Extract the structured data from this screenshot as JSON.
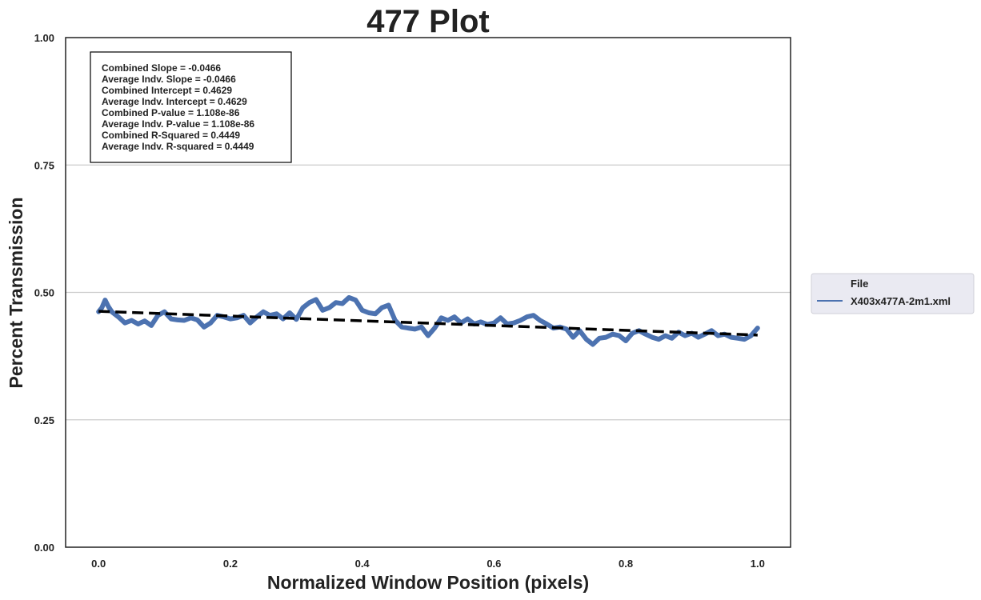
{
  "chart_data": {
    "type": "line",
    "title": "477 Plot",
    "xlabel": "Normalized Window Position (pixels)",
    "ylabel": "Percent Transmission",
    "xlim": [
      -0.05,
      1.05
    ],
    "ylim": [
      0.0,
      1.0
    ],
    "xticks": [
      0.0,
      0.2,
      0.4,
      0.6,
      0.8,
      1.0
    ],
    "xtick_labels": [
      "0.0",
      "0.2",
      "0.4",
      "0.6",
      "0.8",
      "1.0"
    ],
    "yticks": [
      0.0,
      0.25,
      0.5,
      0.75,
      1.0
    ],
    "ytick_labels": [
      "0.00",
      "0.25",
      "0.50",
      "0.75",
      "1.00"
    ],
    "grid": "horizontal",
    "legend": {
      "title": "File",
      "placement": "right-outside",
      "entries": [
        {
          "label": "X403x477A-2m1.xml",
          "color": "#4c72b0"
        }
      ]
    },
    "stats_box": [
      "Combined Slope = -0.0466",
      "Average Indv. Slope = -0.0466",
      "Combined Intercept = 0.4629",
      "Average Indv. Intercept = 0.4629",
      "Combined P-value = 1.108e-86",
      "Average Indv. P-value = 1.108e-86",
      "Combined R-Squared = 0.4449",
      "Average Indv. R-squared = 0.4449"
    ],
    "series": [
      {
        "name": "X403x477A-2m1.xml",
        "color": "#4c72b0",
        "x": [
          0.0,
          0.005,
          0.01,
          0.015,
          0.02,
          0.03,
          0.04,
          0.05,
          0.06,
          0.07,
          0.08,
          0.09,
          0.1,
          0.11,
          0.12,
          0.13,
          0.14,
          0.15,
          0.16,
          0.17,
          0.18,
          0.19,
          0.2,
          0.21,
          0.22,
          0.23,
          0.24,
          0.25,
          0.26,
          0.27,
          0.28,
          0.29,
          0.3,
          0.31,
          0.32,
          0.33,
          0.34,
          0.35,
          0.36,
          0.37,
          0.38,
          0.39,
          0.4,
          0.41,
          0.42,
          0.43,
          0.44,
          0.45,
          0.46,
          0.47,
          0.48,
          0.49,
          0.5,
          0.51,
          0.52,
          0.53,
          0.54,
          0.55,
          0.56,
          0.57,
          0.58,
          0.59,
          0.6,
          0.61,
          0.62,
          0.63,
          0.64,
          0.65,
          0.66,
          0.67,
          0.68,
          0.69,
          0.7,
          0.71,
          0.72,
          0.73,
          0.74,
          0.75,
          0.76,
          0.77,
          0.78,
          0.79,
          0.8,
          0.81,
          0.82,
          0.83,
          0.84,
          0.85,
          0.86,
          0.87,
          0.88,
          0.89,
          0.9,
          0.91,
          0.92,
          0.93,
          0.94,
          0.95,
          0.96,
          0.97,
          0.98,
          0.99,
          1.0
        ],
        "y": [
          0.462,
          0.47,
          0.485,
          0.472,
          0.462,
          0.452,
          0.44,
          0.445,
          0.438,
          0.444,
          0.435,
          0.455,
          0.462,
          0.448,
          0.446,
          0.445,
          0.45,
          0.446,
          0.432,
          0.44,
          0.455,
          0.452,
          0.448,
          0.45,
          0.455,
          0.44,
          0.452,
          0.462,
          0.455,
          0.458,
          0.448,
          0.46,
          0.447,
          0.47,
          0.48,
          0.486,
          0.465,
          0.47,
          0.48,
          0.478,
          0.49,
          0.485,
          0.465,
          0.46,
          0.458,
          0.47,
          0.475,
          0.445,
          0.432,
          0.43,
          0.428,
          0.432,
          0.415,
          0.43,
          0.45,
          0.445,
          0.452,
          0.44,
          0.448,
          0.438,
          0.442,
          0.437,
          0.44,
          0.45,
          0.438,
          0.44,
          0.445,
          0.452,
          0.455,
          0.445,
          0.438,
          0.43,
          0.432,
          0.428,
          0.412,
          0.425,
          0.408,
          0.398,
          0.41,
          0.412,
          0.418,
          0.415,
          0.405,
          0.42,
          0.425,
          0.418,
          0.412,
          0.408,
          0.415,
          0.41,
          0.422,
          0.415,
          0.42,
          0.412,
          0.418,
          0.425,
          0.415,
          0.418,
          0.412,
          0.41,
          0.408,
          0.415,
          0.43
        ]
      },
      {
        "name": "Regression Line",
        "style": "dashed",
        "color": "#000000",
        "x": [
          0.0,
          1.0
        ],
        "y": [
          0.4629,
          0.4163
        ]
      }
    ]
  },
  "colors": {
    "line": "#4c72b0",
    "regression": "#000000",
    "grid": "#cccccc",
    "legend_bg": "#eaeaf2"
  }
}
